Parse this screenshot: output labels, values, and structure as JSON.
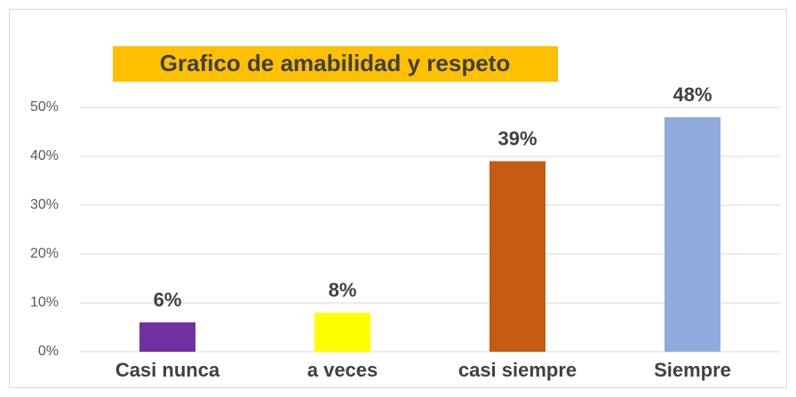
{
  "chart_data": {
    "type": "bar",
    "title": "Grafico de amabilidad y respeto",
    "categories": [
      "Casi nunca",
      "a veces",
      "casi siempre",
      "Siempre"
    ],
    "values": [
      6,
      8,
      39,
      48
    ],
    "value_labels": [
      "6%",
      "8%",
      "39%",
      "48%"
    ],
    "colors": [
      "#7030a0",
      "#ffff00",
      "#c55a11",
      "#8faadc"
    ],
    "ylim": [
      0,
      60
    ],
    "yticks": [
      {
        "value": 0,
        "label": "0%"
      },
      {
        "value": 10,
        "label": "10%"
      },
      {
        "value": 20,
        "label": "20%"
      },
      {
        "value": 30,
        "label": "30%"
      },
      {
        "value": 40,
        "label": "40%"
      },
      {
        "value": 50,
        "label": "50%"
      }
    ],
    "grid": true
  }
}
